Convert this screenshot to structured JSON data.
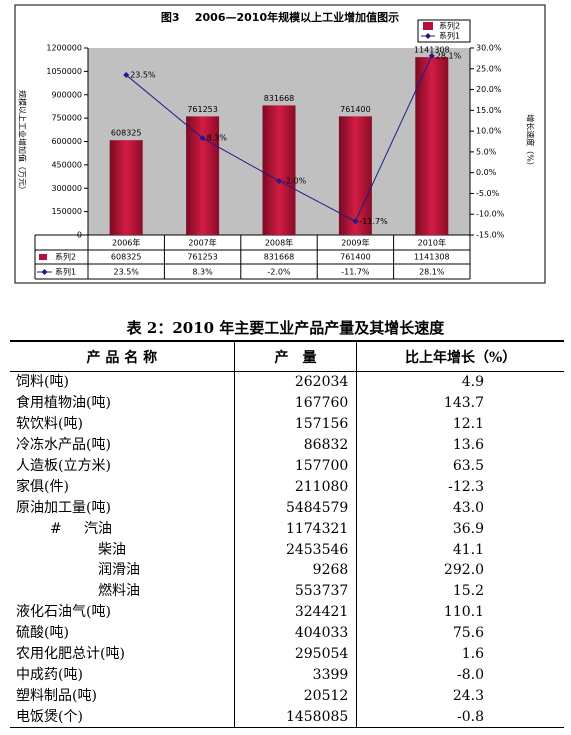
{
  "chart_data": {
    "type": "bar",
    "title": "图3    2006—2010年规模以上工业增加值图示",
    "y_label": "规模以上工业增加值（万元）",
    "y2_label": "增长速度（%）",
    "categories": [
      "2006年",
      "2007年",
      "2008年",
      "2009年",
      "2010年"
    ],
    "series": [
      {
        "name": "系列2",
        "type": "bar",
        "color": "#b3123a",
        "values": [
          608325,
          761253,
          831668,
          761400,
          1141308
        ]
      },
      {
        "name": "系列1",
        "type": "line",
        "axis": "y2",
        "color": "#1c1c8a",
        "values": [
          23.5,
          8.3,
          -2.0,
          -11.7,
          28.1
        ],
        "value_labels": [
          "23.5%",
          "8.3%",
          "-2.0%",
          "-11.7%",
          "28.1%"
        ]
      }
    ],
    "ylim": [
      0,
      1200000
    ],
    "yticks": [
      0,
      150000,
      300000,
      450000,
      600000,
      750000,
      900000,
      1050000,
      1200000
    ],
    "y2lim": [
      -15,
      30
    ],
    "y2ticks": [
      {
        "value": -15,
        "label": "-15.0%"
      },
      {
        "value": -10,
        "label": "-10.0%"
      },
      {
        "value": -5,
        "label": "-5.0%"
      },
      {
        "value": 0,
        "label": "0.0%"
      },
      {
        "value": 5,
        "label": "5.0%"
      },
      {
        "value": 10,
        "label": "10.0%"
      },
      {
        "value": 15,
        "label": "15.0%"
      },
      {
        "value": 20,
        "label": "20.0%"
      },
      {
        "value": 25,
        "label": "25.0%"
      },
      {
        "value": 30,
        "label": "30.0%"
      }
    ],
    "legend": "top-right",
    "grid": false
  },
  "table": {
    "title": "表 2：2010 年主要工业产品产量及其增长速度",
    "headers": [
      "产 品 名 称",
      "产　量",
      "比上年增长（%）"
    ],
    "rows": [
      [
        "饲料(吨)",
        "262034",
        "4.9"
      ],
      [
        "食用植物油(吨)",
        "167760",
        "143.7"
      ],
      [
        "软饮料(吨)",
        "157156",
        "12.1"
      ],
      [
        "冷冻水产品(吨)",
        "86832",
        "13.6"
      ],
      [
        "人造板(立方米)",
        "157700",
        "63.5"
      ],
      [
        "家俱(件)",
        "211080",
        "-12.3"
      ],
      [
        "原油加工量(吨)",
        "5484579",
        "43.0"
      ],
      [
        "#     汽油",
        "1174321",
        "36.9"
      ],
      [
        "柴油",
        "2453546",
        "41.1"
      ],
      [
        "润滑油",
        "9268",
        "292.0"
      ],
      [
        "燃料油",
        "553737",
        "15.2"
      ],
      [
        "液化石油气(吨)",
        "324421",
        "110.1"
      ],
      [
        "硫酸(吨)",
        "404033",
        "75.6"
      ],
      [
        "农用化肥总计(吨)",
        "295054",
        "1.6"
      ],
      [
        "中成药(吨)",
        "3399",
        "-8.0"
      ],
      [
        "塑料制品(吨)",
        "20512",
        "24.3"
      ],
      [
        "电饭煲(个)",
        "1458085",
        "-0.8"
      ]
    ]
  }
}
